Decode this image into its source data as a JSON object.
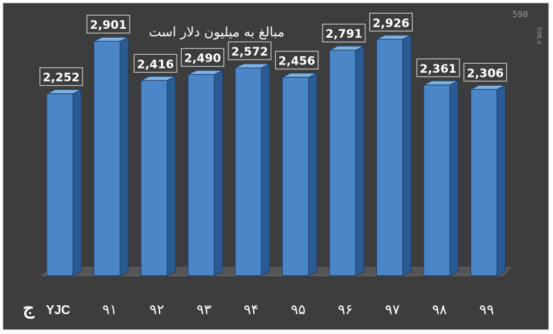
{
  "chart_data": {
    "type": "bar",
    "title": "مبالغ به میلیون دلار است",
    "categories": [
      "۹۱",
      "۹۲",
      "۹۳",
      "۹۴",
      "۹۵",
      "۹۶",
      "۹۷",
      "۹۸",
      "۹۹"
    ],
    "category_values_hidden_first": "",
    "bars": [
      {
        "label": "",
        "value": 2252,
        "display": "2,252"
      },
      {
        "label": "۹۱",
        "value": 2901,
        "display": "2,901"
      },
      {
        "label": "۹۲",
        "value": 2416,
        "display": "2,416"
      },
      {
        "label": "۹۳",
        "value": 2490,
        "display": "2,490"
      },
      {
        "label": "۹۴",
        "value": 2572,
        "display": "2,572"
      },
      {
        "label": "۹۵",
        "value": 2456,
        "display": "2,456"
      },
      {
        "label": "۹۶",
        "value": 2791,
        "display": "2,791"
      },
      {
        "label": "۹۷",
        "value": 2926,
        "display": "2,926"
      },
      {
        "label": "۹۸",
        "value": 2361,
        "display": "2,361"
      },
      {
        "label": "۹۹",
        "value": 2306,
        "display": "2,306"
      }
    ],
    "ylim": [
      0,
      3200
    ],
    "grid": false,
    "legend": "none",
    "colors": {
      "background": "#3d3d3d",
      "bar_front": "#4a86c8",
      "bar_side": "#2a5b94",
      "bar_top": "#7fb0e0",
      "bar_outline": "#1e3f66",
      "label_box": "#3d3d3d",
      "label_border": "#cfcfcf",
      "text": "#ffffff"
    }
  },
  "branding": {
    "logo_text": "YJC",
    "logo_glyph": "ج",
    "watermark": "598",
    "watermark_sub": "598.ir"
  }
}
